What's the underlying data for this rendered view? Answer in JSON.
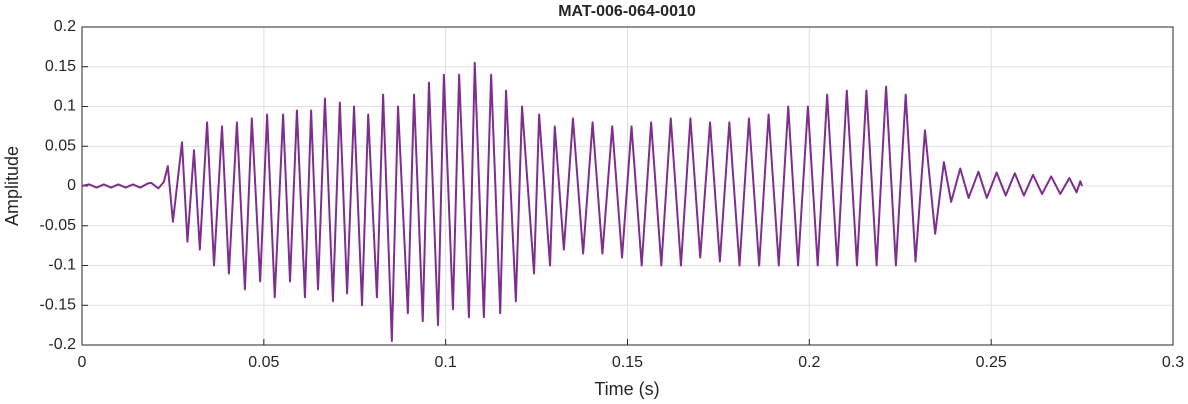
{
  "chart_data": {
    "type": "line",
    "title": "MAT-006-064-0010",
    "xlabel": "Time (s)",
    "ylabel": "Amplitude",
    "xlim": [
      0,
      0.3
    ],
    "ylim": [
      -0.2,
      0.2
    ],
    "xticks": [
      0,
      0.05,
      0.1,
      0.15,
      0.2,
      0.25,
      0.3
    ],
    "yticks": [
      -0.2,
      -0.15,
      -0.1,
      -0.05,
      0,
      0.05,
      0.1,
      0.15,
      0.2
    ],
    "grid": true,
    "series": [
      {
        "name": "Amplitude",
        "color": "#7e2f8e",
        "x": [
          0,
          0.002,
          0.004,
          0.006,
          0.008,
          0.01,
          0.012,
          0.014,
          0.016,
          0.018,
          0.019,
          0.021,
          0.0225,
          0.0236,
          0.025,
          0.0275,
          0.029,
          0.0308,
          0.0324,
          0.0344,
          0.0363,
          0.0385,
          0.0404,
          0.0426,
          0.0448,
          0.0467,
          0.049,
          0.0509,
          0.053,
          0.0553,
          0.0572,
          0.0591,
          0.0613,
          0.063,
          0.0649,
          0.0668,
          0.069,
          0.0709,
          0.0729,
          0.0748,
          0.077,
          0.0787,
          0.0811,
          0.0828,
          0.0852,
          0.0869,
          0.0896,
          0.0913,
          0.0937,
          0.0954,
          0.0979,
          0.0995,
          0.102,
          0.1037,
          0.1064,
          0.108,
          0.1105,
          0.1125,
          0.115,
          0.1166,
          0.1193,
          0.121,
          0.1243,
          0.1257,
          0.1287,
          0.13,
          0.1325,
          0.135,
          0.1378,
          0.1404,
          0.1431,
          0.1458,
          0.1485,
          0.1511,
          0.1539,
          0.1565,
          0.1593,
          0.1619,
          0.1647,
          0.1673,
          0.17,
          0.1727,
          0.1754,
          0.178,
          0.1808,
          0.1834,
          0.1862,
          0.1888,
          0.1916,
          0.1942,
          0.1969,
          0.1996,
          0.2023,
          0.2049,
          0.2077,
          0.2103,
          0.2131,
          0.2157,
          0.2185,
          0.2211,
          0.2238,
          0.2265,
          0.2292,
          0.2318,
          0.2346,
          0.237,
          0.239,
          0.2415,
          0.2438,
          0.2465,
          0.2488,
          0.2515,
          0.254,
          0.2565,
          0.259,
          0.2615,
          0.264,
          0.2665,
          0.269,
          0.2715,
          0.2735,
          0.2745,
          0.275
        ],
        "values": [
          0,
          0.002,
          -0.002,
          0.002,
          -0.002,
          0.002,
          -0.002,
          0.002,
          -0.002,
          0.003,
          0.004,
          -0.003,
          0.005,
          0.025,
          -0.045,
          0.055,
          -0.07,
          0.045,
          -0.08,
          0.08,
          -0.1,
          0.075,
          -0.11,
          0.08,
          -0.13,
          0.085,
          -0.12,
          0.09,
          -0.14,
          0.09,
          -0.12,
          0.095,
          -0.14,
          0.095,
          -0.13,
          0.11,
          -0.145,
          0.105,
          -0.135,
          0.1,
          -0.15,
          0.09,
          -0.14,
          0.115,
          -0.195,
          0.1,
          -0.16,
          0.115,
          -0.17,
          0.13,
          -0.175,
          0.14,
          -0.155,
          0.14,
          -0.165,
          0.155,
          -0.165,
          0.14,
          -0.16,
          0.12,
          -0.145,
          0.1,
          -0.11,
          0.09,
          -0.1,
          0.075,
          -0.08,
          0.085,
          -0.085,
          0.08,
          -0.085,
          0.075,
          -0.09,
          0.075,
          -0.1,
          0.08,
          -0.1,
          0.085,
          -0.1,
          0.085,
          -0.09,
          0.08,
          -0.095,
          0.08,
          -0.1,
          0.085,
          -0.1,
          0.09,
          -0.1,
          0.1,
          -0.1,
          0.1,
          -0.1,
          0.115,
          -0.1,
          0.12,
          -0.1,
          0.12,
          -0.1,
          0.125,
          -0.1,
          0.115,
          -0.095,
          0.07,
          -0.06,
          0.03,
          -0.02,
          0.022,
          -0.015,
          0.018,
          -0.015,
          0.017,
          -0.012,
          0.016,
          -0.012,
          0.014,
          -0.01,
          0.012,
          -0.01,
          0.01,
          -0.008,
          0.006,
          0
        ]
      }
    ]
  }
}
